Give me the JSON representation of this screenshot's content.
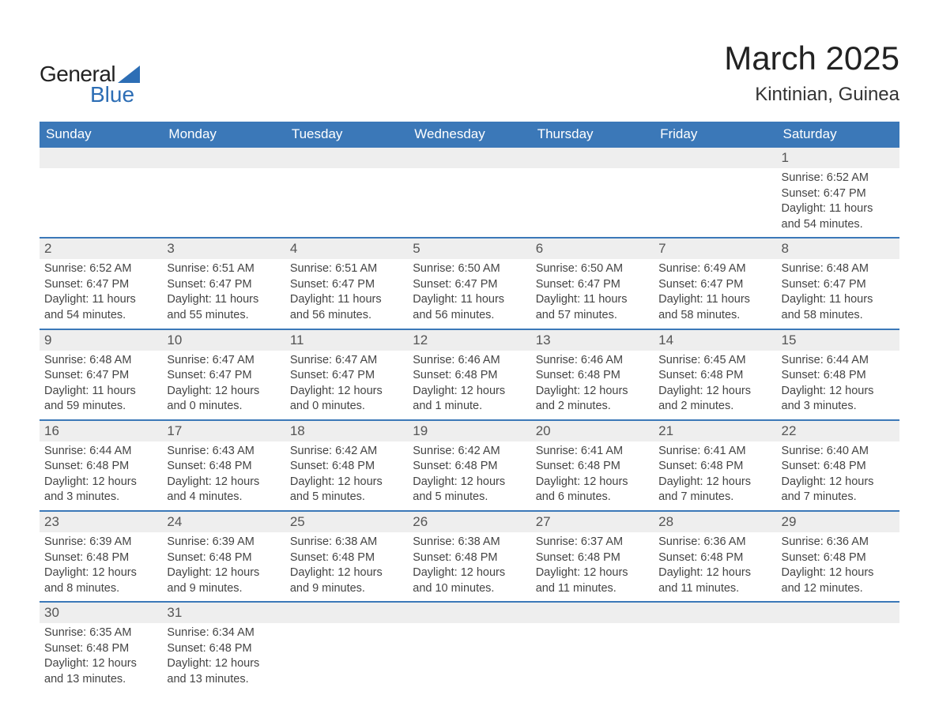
{
  "logo": {
    "text_general": "General",
    "text_blue": "Blue",
    "triangle_color": "#2d6eb5"
  },
  "title": "March 2025",
  "location": "Kintinian, Guinea",
  "colors": {
    "header_bg": "#3b78b8",
    "header_text": "#ffffff",
    "daynum_bg": "#eeeeee",
    "row_border": "#3b78b8",
    "body_text": "#444444",
    "title_text": "#222222"
  },
  "weekdays": [
    "Sunday",
    "Monday",
    "Tuesday",
    "Wednesday",
    "Thursday",
    "Friday",
    "Saturday"
  ],
  "weeks": [
    [
      null,
      null,
      null,
      null,
      null,
      null,
      {
        "n": "1",
        "sunrise": "6:52 AM",
        "sunset": "6:47 PM",
        "daylight": "11 hours and 54 minutes."
      }
    ],
    [
      {
        "n": "2",
        "sunrise": "6:52 AM",
        "sunset": "6:47 PM",
        "daylight": "11 hours and 54 minutes."
      },
      {
        "n": "3",
        "sunrise": "6:51 AM",
        "sunset": "6:47 PM",
        "daylight": "11 hours and 55 minutes."
      },
      {
        "n": "4",
        "sunrise": "6:51 AM",
        "sunset": "6:47 PM",
        "daylight": "11 hours and 56 minutes."
      },
      {
        "n": "5",
        "sunrise": "6:50 AM",
        "sunset": "6:47 PM",
        "daylight": "11 hours and 56 minutes."
      },
      {
        "n": "6",
        "sunrise": "6:50 AM",
        "sunset": "6:47 PM",
        "daylight": "11 hours and 57 minutes."
      },
      {
        "n": "7",
        "sunrise": "6:49 AM",
        "sunset": "6:47 PM",
        "daylight": "11 hours and 58 minutes."
      },
      {
        "n": "8",
        "sunrise": "6:48 AM",
        "sunset": "6:47 PM",
        "daylight": "11 hours and 58 minutes."
      }
    ],
    [
      {
        "n": "9",
        "sunrise": "6:48 AM",
        "sunset": "6:47 PM",
        "daylight": "11 hours and 59 minutes."
      },
      {
        "n": "10",
        "sunrise": "6:47 AM",
        "sunset": "6:47 PM",
        "daylight": "12 hours and 0 minutes."
      },
      {
        "n": "11",
        "sunrise": "6:47 AM",
        "sunset": "6:47 PM",
        "daylight": "12 hours and 0 minutes."
      },
      {
        "n": "12",
        "sunrise": "6:46 AM",
        "sunset": "6:48 PM",
        "daylight": "12 hours and 1 minute."
      },
      {
        "n": "13",
        "sunrise": "6:46 AM",
        "sunset": "6:48 PM",
        "daylight": "12 hours and 2 minutes."
      },
      {
        "n": "14",
        "sunrise": "6:45 AM",
        "sunset": "6:48 PM",
        "daylight": "12 hours and 2 minutes."
      },
      {
        "n": "15",
        "sunrise": "6:44 AM",
        "sunset": "6:48 PM",
        "daylight": "12 hours and 3 minutes."
      }
    ],
    [
      {
        "n": "16",
        "sunrise": "6:44 AM",
        "sunset": "6:48 PM",
        "daylight": "12 hours and 3 minutes."
      },
      {
        "n": "17",
        "sunrise": "6:43 AM",
        "sunset": "6:48 PM",
        "daylight": "12 hours and 4 minutes."
      },
      {
        "n": "18",
        "sunrise": "6:42 AM",
        "sunset": "6:48 PM",
        "daylight": "12 hours and 5 minutes."
      },
      {
        "n": "19",
        "sunrise": "6:42 AM",
        "sunset": "6:48 PM",
        "daylight": "12 hours and 5 minutes."
      },
      {
        "n": "20",
        "sunrise": "6:41 AM",
        "sunset": "6:48 PM",
        "daylight": "12 hours and 6 minutes."
      },
      {
        "n": "21",
        "sunrise": "6:41 AM",
        "sunset": "6:48 PM",
        "daylight": "12 hours and 7 minutes."
      },
      {
        "n": "22",
        "sunrise": "6:40 AM",
        "sunset": "6:48 PM",
        "daylight": "12 hours and 7 minutes."
      }
    ],
    [
      {
        "n": "23",
        "sunrise": "6:39 AM",
        "sunset": "6:48 PM",
        "daylight": "12 hours and 8 minutes."
      },
      {
        "n": "24",
        "sunrise": "6:39 AM",
        "sunset": "6:48 PM",
        "daylight": "12 hours and 9 minutes."
      },
      {
        "n": "25",
        "sunrise": "6:38 AM",
        "sunset": "6:48 PM",
        "daylight": "12 hours and 9 minutes."
      },
      {
        "n": "26",
        "sunrise": "6:38 AM",
        "sunset": "6:48 PM",
        "daylight": "12 hours and 10 minutes."
      },
      {
        "n": "27",
        "sunrise": "6:37 AM",
        "sunset": "6:48 PM",
        "daylight": "12 hours and 11 minutes."
      },
      {
        "n": "28",
        "sunrise": "6:36 AM",
        "sunset": "6:48 PM",
        "daylight": "12 hours and 11 minutes."
      },
      {
        "n": "29",
        "sunrise": "6:36 AM",
        "sunset": "6:48 PM",
        "daylight": "12 hours and 12 minutes."
      }
    ],
    [
      {
        "n": "30",
        "sunrise": "6:35 AM",
        "sunset": "6:48 PM",
        "daylight": "12 hours and 13 minutes."
      },
      {
        "n": "31",
        "sunrise": "6:34 AM",
        "sunset": "6:48 PM",
        "daylight": "12 hours and 13 minutes."
      },
      null,
      null,
      null,
      null,
      null
    ]
  ],
  "labels": {
    "sunrise": "Sunrise:",
    "sunset": "Sunset:",
    "daylight": "Daylight:"
  }
}
